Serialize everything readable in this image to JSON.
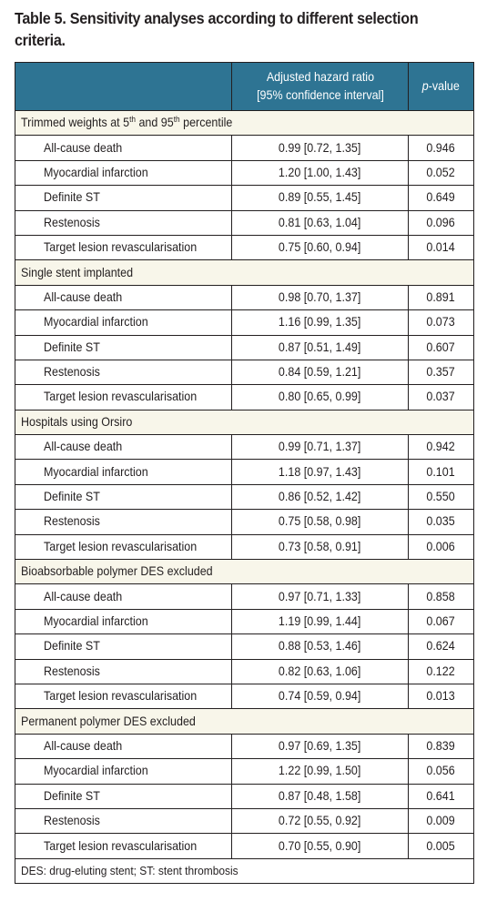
{
  "title": "Table 5. Sensitivity analyses according to different selection criteria.",
  "header": {
    "col1": "",
    "col2_line1": "Adjusted hazard ratio",
    "col2_line2": "[95% confidence interval]",
    "col3_italic": "p",
    "col3_suffix": "-value"
  },
  "colors": {
    "header_bg": "#2e7493",
    "group_bg": "#f8f6ea",
    "border": "#231f20"
  },
  "groups": [
    {
      "label_prefix": "Trimmed weights at 5",
      "label_sup1": "th",
      "label_mid": " and 95",
      "label_sup2": "th",
      "label_suffix": " percentile",
      "rows": [
        {
          "name": "All-cause death",
          "ci": "0.99 [0.72, 1.35]",
          "p": "0.946"
        },
        {
          "name": "Myocardial infarction",
          "ci": "1.20 [1.00, 1.43]",
          "p": "0.052"
        },
        {
          "name": "Definite ST",
          "ci": "0.89 [0.55, 1.45]",
          "p": "0.649"
        },
        {
          "name": "Restenosis",
          "ci": "0.81 [0.63, 1.04]",
          "p": "0.096"
        },
        {
          "name": "Target lesion revascularisation",
          "ci": "0.75 [0.60, 0.94]",
          "p": "0.014"
        }
      ]
    },
    {
      "label": "Single stent implanted",
      "rows": [
        {
          "name": "All-cause death",
          "ci": "0.98 [0.70, 1.37]",
          "p": "0.891"
        },
        {
          "name": "Myocardial infarction",
          "ci": "1.16 [0.99, 1.35]",
          "p": "0.073"
        },
        {
          "name": "Definite ST",
          "ci": "0.87 [0.51, 1.49]",
          "p": "0.607"
        },
        {
          "name": "Restenosis",
          "ci": "0.84 [0.59, 1.21]",
          "p": "0.357"
        },
        {
          "name": "Target lesion revascularisation",
          "ci": "0.80 [0.65, 0.99]",
          "p": "0.037"
        }
      ]
    },
    {
      "label": "Hospitals using Orsiro",
      "rows": [
        {
          "name": "All-cause death",
          "ci": "0.99 [0.71, 1.37]",
          "p": "0.942"
        },
        {
          "name": "Myocardial infarction",
          "ci": "1.18 [0.97, 1.43]",
          "p": "0.101"
        },
        {
          "name": "Definite ST",
          "ci": "0.86 [0.52, 1.42]",
          "p": "0.550"
        },
        {
          "name": "Restenosis",
          "ci": "0.75 [0.58, 0.98]",
          "p": "0.035"
        },
        {
          "name": "Target lesion revascularisation",
          "ci": "0.73 [0.58, 0.91]",
          "p": "0.006"
        }
      ]
    },
    {
      "label": "Bioabsorbable polymer DES excluded",
      "rows": [
        {
          "name": "All-cause death",
          "ci": "0.97 [0.71, 1.33]",
          "p": "0.858"
        },
        {
          "name": "Myocardial infarction",
          "ci": "1.19 [0.99, 1.44]",
          "p": "0.067"
        },
        {
          "name": "Definite ST",
          "ci": "0.88 [0.53, 1.46]",
          "p": "0.624"
        },
        {
          "name": "Restenosis",
          "ci": "0.82 [0.63, 1.06]",
          "p": "0.122"
        },
        {
          "name": "Target lesion revascularisation",
          "ci": "0.74 [0.59, 0.94]",
          "p": "0.013"
        }
      ]
    },
    {
      "label": "Permanent polymer DES excluded",
      "rows": [
        {
          "name": "All-cause death",
          "ci": "0.97 [0.69, 1.35]",
          "p": "0.839"
        },
        {
          "name": "Myocardial infarction",
          "ci": "1.22 [0.99, 1.50]",
          "p": "0.056"
        },
        {
          "name": "Definite ST",
          "ci": "0.87 [0.48, 1.58]",
          "p": "0.641"
        },
        {
          "name": "Restenosis",
          "ci": "0.72 [0.55, 0.92]",
          "p": "0.009"
        },
        {
          "name": "Target lesion revascularisation",
          "ci": "0.70 [0.55, 0.90]",
          "p": "0.005"
        }
      ]
    }
  ],
  "footnote": "DES: drug-eluting stent; ST: stent thrombosis"
}
